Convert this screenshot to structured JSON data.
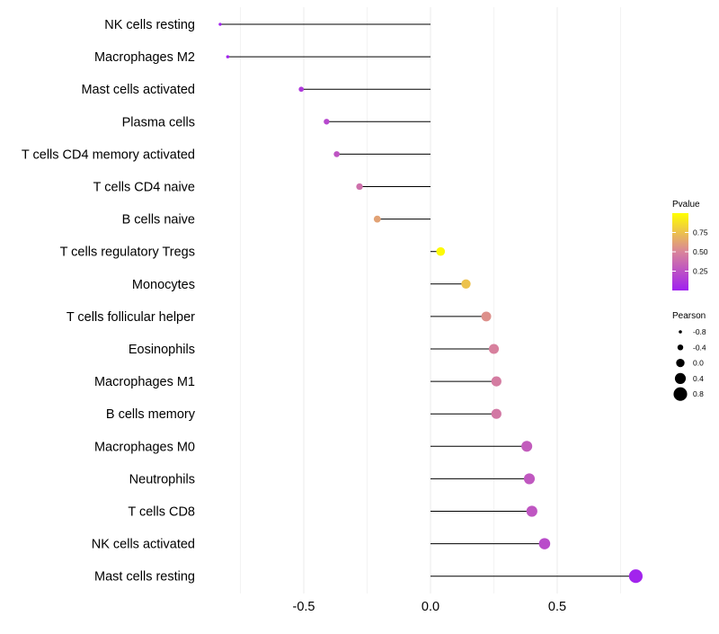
{
  "chart_data": {
    "type": "lollipop",
    "title": "",
    "xlabel": "",
    "ylabel": "",
    "xlim": [
      -0.85,
      0.85
    ],
    "x_ticks": [
      {
        "value": -0.5,
        "label": "-0.5"
      },
      {
        "value": 0.0,
        "label": "0.0"
      },
      {
        "value": 0.5,
        "label": "0.5"
      }
    ],
    "grid": true,
    "categories": [
      "NK cells resting",
      "Macrophages M2",
      "Mast cells activated",
      "Plasma cells",
      "T cells CD4 memory activated",
      "T cells CD4 naive",
      "B cells naive",
      "T cells regulatory  Tregs",
      "Monocytes",
      "T cells follicular helper",
      "Eosinophils",
      "Macrophages M1",
      "B cells memory",
      "Macrophages M0",
      "Neutrophils",
      "T cells CD8",
      "NK cells activated",
      "Mast cells resting"
    ],
    "pearson": [
      -0.83,
      -0.8,
      -0.51,
      -0.41,
      -0.37,
      -0.28,
      -0.21,
      0.04,
      0.14,
      0.22,
      0.25,
      0.26,
      0.26,
      0.38,
      0.39,
      0.4,
      0.45,
      0.81
    ],
    "pvalue": [
      0.01,
      0.02,
      0.12,
      0.2,
      0.26,
      0.4,
      0.62,
      0.98,
      0.75,
      0.55,
      0.48,
      0.46,
      0.44,
      0.3,
      0.28,
      0.27,
      0.22,
      0.02
    ],
    "legends": {
      "color": {
        "title": "Pvalue",
        "ticks": [
          {
            "value": 0.75,
            "label": "0.75"
          },
          {
            "value": 0.5,
            "label": "0.50"
          },
          {
            "value": 0.25,
            "label": "0.25"
          }
        ],
        "range": [
          0.0,
          1.0
        ],
        "low_color": "#a020f0",
        "mid_color": "#d9849a",
        "high_color": "#ffff00"
      },
      "size": {
        "title": "Pearson",
        "entries": [
          {
            "value": -0.8,
            "label": "-0.8"
          },
          {
            "value": -0.4,
            "label": "-0.4"
          },
          {
            "value": 0.0,
            "label": "0.0"
          },
          {
            "value": 0.4,
            "label": "0.4"
          },
          {
            "value": 0.8,
            "label": "0.8"
          }
        ]
      }
    },
    "colors": {
      "stem": "#000000",
      "grid": "#ebebeb",
      "text": "#000000"
    }
  }
}
